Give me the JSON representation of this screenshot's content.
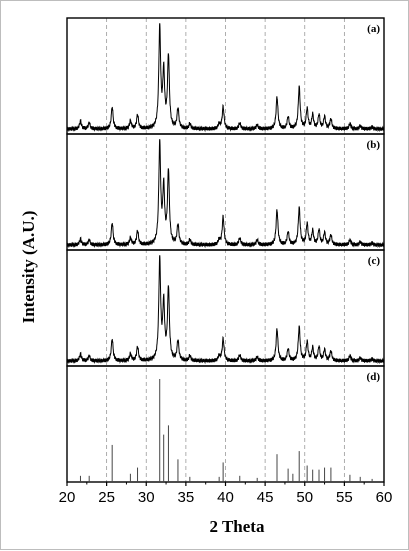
{
  "chart_data": {
    "type": "line",
    "xlabel": "2 Theta",
    "ylabel": "Intensity (A.U.)",
    "xlim": [
      20,
      60
    ],
    "xticks": [
      20,
      25,
      30,
      35,
      40,
      45,
      50,
      55,
      60
    ],
    "grid": "vertical dashed",
    "series": [
      {
        "name": "(a)",
        "style": "line",
        "peaks": [
          [
            21.7,
            0.08
          ],
          [
            22.8,
            0.06
          ],
          [
            25.7,
            0.22
          ],
          [
            28.0,
            0.08
          ],
          [
            28.9,
            0.14
          ],
          [
            31.7,
            1.0
          ],
          [
            32.2,
            0.55
          ],
          [
            32.8,
            0.72
          ],
          [
            34.0,
            0.2
          ],
          [
            35.5,
            0.05
          ],
          [
            39.2,
            0.05
          ],
          [
            39.7,
            0.22
          ],
          [
            41.8,
            0.06
          ],
          [
            44.0,
            0.04
          ],
          [
            46.5,
            0.32
          ],
          [
            47.9,
            0.12
          ],
          [
            49.3,
            0.42
          ],
          [
            50.3,
            0.2
          ],
          [
            51.0,
            0.14
          ],
          [
            51.8,
            0.14
          ],
          [
            52.5,
            0.12
          ],
          [
            53.3,
            0.1
          ],
          [
            55.7,
            0.05
          ],
          [
            57.0,
            0.03
          ],
          [
            58.5,
            0.02
          ]
        ]
      },
      {
        "name": "(b)",
        "style": "line",
        "peaks": [
          [
            21.7,
            0.06
          ],
          [
            22.8,
            0.05
          ],
          [
            25.7,
            0.22
          ],
          [
            28.0,
            0.07
          ],
          [
            28.9,
            0.14
          ],
          [
            31.7,
            1.0
          ],
          [
            32.2,
            0.55
          ],
          [
            32.8,
            0.73
          ],
          [
            34.0,
            0.2
          ],
          [
            35.5,
            0.05
          ],
          [
            39.2,
            0.05
          ],
          [
            39.7,
            0.28
          ],
          [
            41.8,
            0.07
          ],
          [
            44.0,
            0.05
          ],
          [
            46.5,
            0.35
          ],
          [
            47.9,
            0.13
          ],
          [
            49.3,
            0.37
          ],
          [
            50.3,
            0.21
          ],
          [
            51.0,
            0.14
          ],
          [
            51.8,
            0.15
          ],
          [
            52.5,
            0.12
          ],
          [
            53.3,
            0.1
          ],
          [
            55.7,
            0.05
          ],
          [
            57.0,
            0.03
          ],
          [
            58.5,
            0.02
          ]
        ]
      },
      {
        "name": "(c)",
        "style": "line",
        "peaks": [
          [
            21.7,
            0.07
          ],
          [
            22.8,
            0.05
          ],
          [
            25.7,
            0.22
          ],
          [
            28.0,
            0.07
          ],
          [
            28.9,
            0.14
          ],
          [
            31.7,
            1.0
          ],
          [
            32.2,
            0.55
          ],
          [
            32.8,
            0.72
          ],
          [
            34.0,
            0.2
          ],
          [
            35.5,
            0.05
          ],
          [
            39.2,
            0.05
          ],
          [
            39.7,
            0.22
          ],
          [
            41.8,
            0.06
          ],
          [
            44.0,
            0.04
          ],
          [
            46.5,
            0.32
          ],
          [
            47.9,
            0.12
          ],
          [
            49.3,
            0.34
          ],
          [
            50.3,
            0.19
          ],
          [
            51.0,
            0.13
          ],
          [
            51.8,
            0.14
          ],
          [
            52.5,
            0.11
          ],
          [
            53.3,
            0.1
          ],
          [
            55.7,
            0.05
          ],
          [
            57.0,
            0.03
          ],
          [
            58.5,
            0.02
          ]
        ]
      },
      {
        "name": "(d)",
        "style": "stick",
        "peaks": [
          [
            21.7,
            0.06
          ],
          [
            22.8,
            0.06
          ],
          [
            25.7,
            0.36
          ],
          [
            28.0,
            0.08
          ],
          [
            28.9,
            0.14
          ],
          [
            31.7,
            1.0
          ],
          [
            32.2,
            0.46
          ],
          [
            32.8,
            0.55
          ],
          [
            34.0,
            0.22
          ],
          [
            35.5,
            0.05
          ],
          [
            39.2,
            0.05
          ],
          [
            39.7,
            0.19
          ],
          [
            41.8,
            0.06
          ],
          [
            44.0,
            0.04
          ],
          [
            46.5,
            0.27
          ],
          [
            47.9,
            0.13
          ],
          [
            48.5,
            0.08
          ],
          [
            49.3,
            0.3
          ],
          [
            50.3,
            0.16
          ],
          [
            51.0,
            0.12
          ],
          [
            51.8,
            0.12
          ],
          [
            52.5,
            0.14
          ],
          [
            53.3,
            0.14
          ],
          [
            55.7,
            0.07
          ],
          [
            57.0,
            0.05
          ],
          [
            58.5,
            0.03
          ]
        ]
      }
    ]
  }
}
